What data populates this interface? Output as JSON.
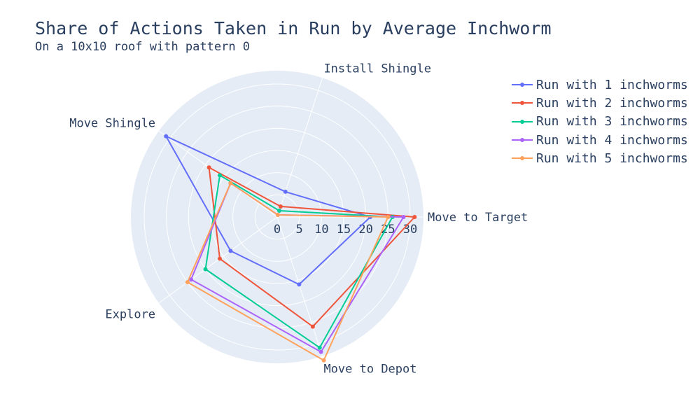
{
  "chart_data": {
    "type": "radar",
    "title": "Share of Actions Taken in Run by Average Inchworm",
    "subtitle": "On a 10x10 roof with pattern 0",
    "axes": [
      "Move to Target",
      "Install Shingle",
      "Move Shingle",
      "Explore",
      "Move to Depot"
    ],
    "radial_range": [
      0,
      33
    ],
    "radial_ticks": [
      0,
      5,
      10,
      15,
      20,
      25,
      30
    ],
    "grid": true,
    "legend_position": "top-right",
    "background": "#e5ecf6",
    "series": [
      {
        "name": "Run with 1 inchworms",
        "color": "#636efa",
        "values": [
          21,
          6,
          31,
          13,
          16
        ]
      },
      {
        "name": "Run with 2 inchworms",
        "color": "#ef553b",
        "values": [
          31,
          2.5,
          19,
          16,
          26
        ]
      },
      {
        "name": "Run with 3 inchworms",
        "color": "#00cc96",
        "values": [
          26,
          1.5,
          16,
          20,
          31
        ]
      },
      {
        "name": "Run with 4 inchworms",
        "color": "#ab63fa",
        "values": [
          28.5,
          0.5,
          13,
          24,
          32
        ]
      },
      {
        "name": "Run with 5 inchworms",
        "color": "#ffa15a",
        "values": [
          25,
          0.5,
          13,
          25,
          34
        ]
      }
    ]
  }
}
